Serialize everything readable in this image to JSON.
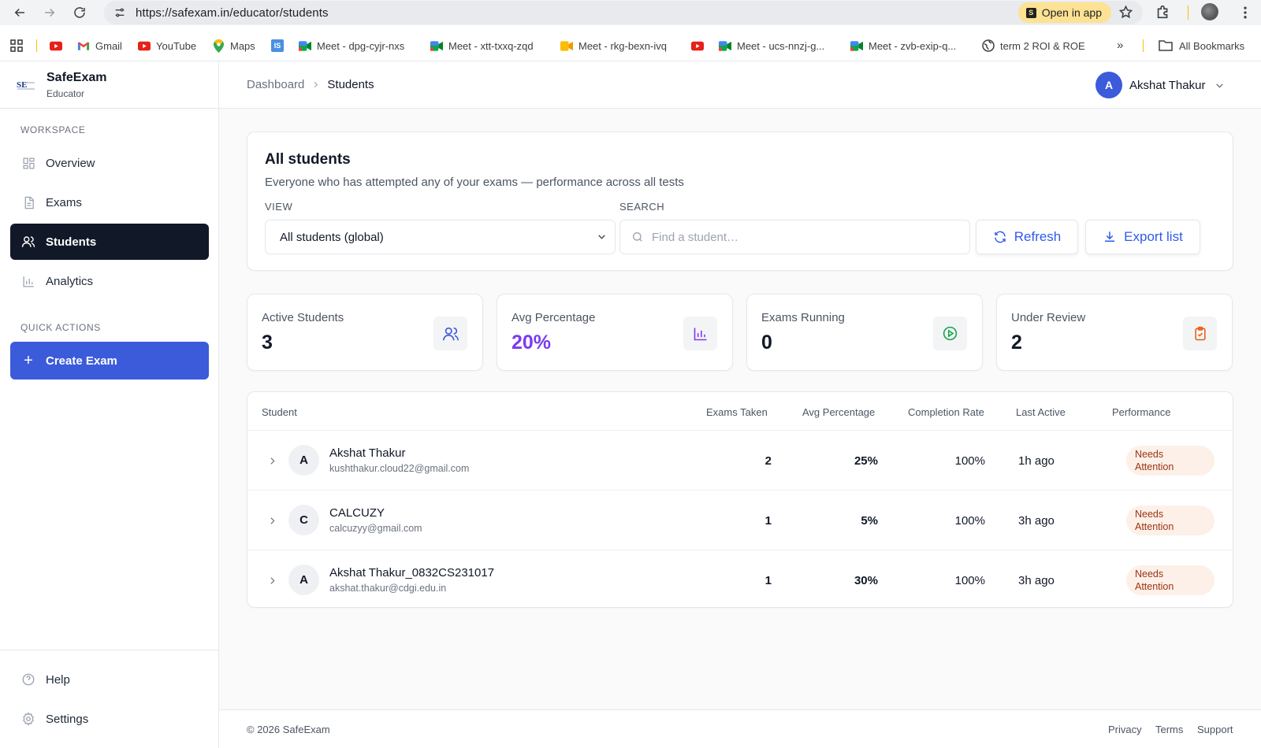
{
  "browser": {
    "url": "https://safexam.in/educator/students",
    "open_in_app": "Open in app",
    "open_in_app_icon_letter": "S",
    "bookmarks": [
      {
        "label": "",
        "icon": "youtube-icon"
      },
      {
        "label": "Gmail",
        "icon": "gmail-icon"
      },
      {
        "label": "YouTube",
        "icon": "youtube-icon"
      },
      {
        "label": "Maps",
        "icon": "maps-icon"
      },
      {
        "label": "",
        "icon": "is-icon",
        "icon_text": "IS"
      },
      {
        "label": "Meet - dpg-cyjr-nxs",
        "icon": "meet-icon"
      },
      {
        "label": "Meet - xtt-txxq-zqd",
        "icon": "meet-icon"
      },
      {
        "label": "Meet - rkg-bexn-ivq",
        "icon": "meet-alt-icon"
      },
      {
        "label": "",
        "icon": "youtube-icon"
      },
      {
        "label": "Meet - ucs-nnzj-g...",
        "icon": "meet-icon"
      },
      {
        "label": "Meet - zvb-exip-q...",
        "icon": "meet-icon"
      },
      {
        "label": "term 2 ROI & ROE",
        "icon": "globe-icon"
      }
    ],
    "more": "»",
    "all_bookmarks": "All Bookmarks"
  },
  "sidebar": {
    "brand": {
      "name": "SafeExam",
      "role": "Educator",
      "logo_text": "SE"
    },
    "workspace_label": "WORKSPACE",
    "items": [
      {
        "label": "Overview",
        "icon": "grid-icon",
        "active": false
      },
      {
        "label": "Exams",
        "icon": "document-icon",
        "active": false
      },
      {
        "label": "Students",
        "icon": "users-icon",
        "active": true
      },
      {
        "label": "Analytics",
        "icon": "bar-chart-icon",
        "active": false
      }
    ],
    "quick_actions_label": "QUICK ACTIONS",
    "create_exam": "Create Exam",
    "bottom": [
      {
        "label": "Help",
        "icon": "help-icon"
      },
      {
        "label": "Settings",
        "icon": "gear-icon"
      }
    ]
  },
  "header": {
    "breadcrumb": {
      "parent": "Dashboard",
      "current": "Students"
    },
    "user": {
      "initial": "A",
      "name": "Akshat Thakur"
    }
  },
  "filters": {
    "title": "All students",
    "description": "Everyone who has attempted any of your exams — performance across all tests",
    "view_label": "VIEW",
    "view_value": "All students (global)",
    "search_label": "SEARCH",
    "search_value": "",
    "search_placeholder": "Find a student…",
    "refresh": "Refresh",
    "export": "Export list"
  },
  "stats": [
    {
      "label": "Active Students",
      "value": "3",
      "icon": "users-icon",
      "value_color": "#111827",
      "icon_color": "#3b5bdb"
    },
    {
      "label": "Avg Percentage",
      "value": "20%",
      "icon": "bar-chart-icon",
      "value_color": "#7c3aed",
      "icon_color": "#7c3aed"
    },
    {
      "label": "Exams Running",
      "value": "0",
      "icon": "play-circle-icon",
      "value_color": "#111827",
      "icon_color": "#16a34a"
    },
    {
      "label": "Under Review",
      "value": "2",
      "icon": "clipboard-check-icon",
      "value_color": "#111827",
      "icon_color": "#ea580c"
    }
  ],
  "table": {
    "columns": [
      "Student",
      "Exams Taken",
      "Avg Percentage",
      "Completion Rate",
      "Last Active",
      "Performance"
    ],
    "rows": [
      {
        "initial": "A",
        "name": "Akshat Thakur",
        "email": "kushthakur.cloud22@gmail.com",
        "exams_taken": "2",
        "avg_percentage": "25%",
        "completion_rate": "100%",
        "last_active": "1h ago",
        "performance": [
          "Needs",
          "Attention"
        ]
      },
      {
        "initial": "C",
        "name": "CALCUZY",
        "email": "calcuzyy@gmail.com",
        "exams_taken": "1",
        "avg_percentage": "5%",
        "completion_rate": "100%",
        "last_active": "3h ago",
        "performance": [
          "Needs",
          "Attention"
        ]
      },
      {
        "initial": "A",
        "name": "Akshat Thakur_0832CS231017",
        "email": "akshat.thakur@cdgi.edu.in",
        "exams_taken": "1",
        "avg_percentage": "30%",
        "completion_rate": "100%",
        "last_active": "3h ago",
        "performance": [
          "Needs",
          "Attention"
        ]
      }
    ]
  },
  "footer": {
    "copyright": "© 2026 SafeExam",
    "links": [
      "Privacy",
      "Terms",
      "Support"
    ]
  }
}
